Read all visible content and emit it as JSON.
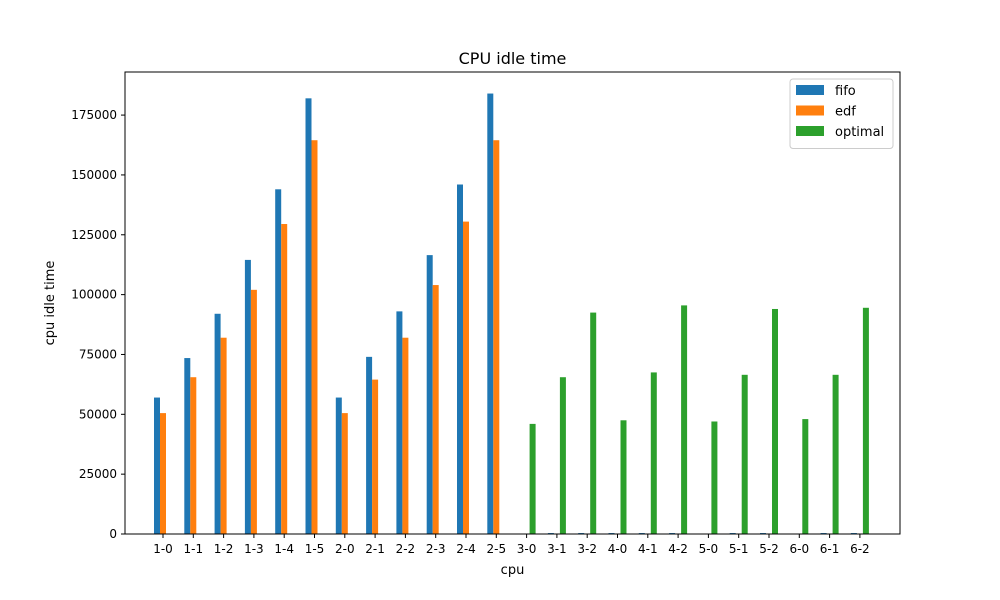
{
  "chart_data": {
    "type": "bar",
    "title": "CPU idle time",
    "xlabel": "cpu",
    "ylabel": "cpu idle time",
    "ylim": [
      0,
      193000
    ],
    "yticks": [
      0,
      25000,
      50000,
      75000,
      100000,
      125000,
      150000,
      175000
    ],
    "categories": [
      "1-0",
      "1-1",
      "1-2",
      "1-3",
      "1-4",
      "1-5",
      "2-0",
      "2-1",
      "2-2",
      "2-3",
      "2-4",
      "2-5",
      "3-0",
      "3-1",
      "3-2",
      "4-0",
      "4-1",
      "4-2",
      "5-0",
      "5-1",
      "5-2",
      "6-0",
      "6-1",
      "6-2"
    ],
    "series": [
      {
        "name": "fifo",
        "color": "#1f77b4",
        "values": [
          57000,
          73500,
          92000,
          114500,
          144000,
          182000,
          57000,
          74000,
          93000,
          116500,
          146000,
          184000,
          0,
          400,
          400,
          400,
          400,
          400,
          0,
          400,
          400,
          0,
          400,
          400
        ]
      },
      {
        "name": "edf",
        "color": "#ff7f0e",
        "values": [
          50500,
          65500,
          82000,
          102000,
          129500,
          164500,
          50500,
          64500,
          82000,
          104000,
          130500,
          164500,
          0,
          0,
          0,
          0,
          0,
          0,
          0,
          0,
          0,
          0,
          0,
          0
        ]
      },
      {
        "name": "optimal",
        "color": "#2ca02c",
        "values": [
          0,
          0,
          0,
          0,
          0,
          0,
          0,
          0,
          0,
          0,
          0,
          0,
          46000,
          65500,
          92500,
          47500,
          67500,
          95500,
          47000,
          66500,
          94000,
          48000,
          66500,
          94500
        ]
      }
    ],
    "legend": {
      "placement": "top-right"
    },
    "grid": false
  }
}
